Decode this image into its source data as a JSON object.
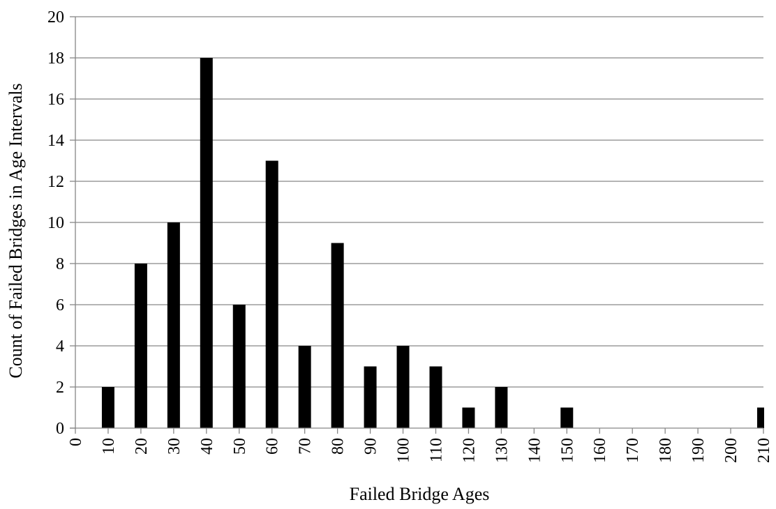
{
  "chart_data": {
    "type": "bar",
    "title": "",
    "xlabel": "Failed Bridge Ages",
    "ylabel": "Count of Failed Bridges in Age Intervals",
    "categories": [
      "0",
      "10",
      "20",
      "30",
      "40",
      "50",
      "60",
      "70",
      "80",
      "90",
      "100",
      "110",
      "120",
      "130",
      "140",
      "150",
      "160",
      "170",
      "180",
      "190",
      "200",
      "210"
    ],
    "values": [
      0,
      2,
      8,
      10,
      18,
      6,
      13,
      4,
      9,
      3,
      4,
      3,
      1,
      2,
      0,
      1,
      0,
      0,
      0,
      0,
      0,
      1
    ],
    "ylim": [
      0,
      20
    ],
    "yticks": [
      "0",
      "2",
      "4",
      "6",
      "8",
      "10",
      "12",
      "14",
      "16",
      "18",
      "20"
    ],
    "grid": true,
    "legend": "none",
    "bar_color": "#000000",
    "grid_color": "#868686"
  }
}
